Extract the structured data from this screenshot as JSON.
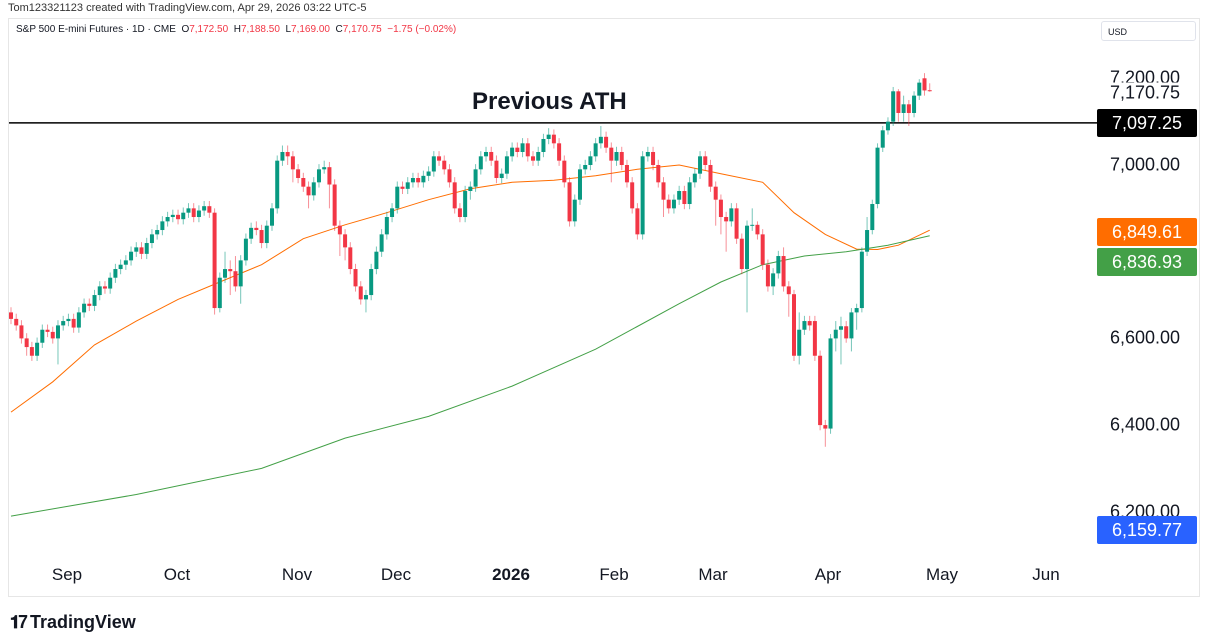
{
  "header": {
    "credit": "Tom123321123 created with TradingView.com, Apr 29, 2026 03:22 UTC-5",
    "symbol": "S&P 500 E-mini Futures · 1D · CME",
    "open_label": "O",
    "open": "7,172.50",
    "high_label": "H",
    "high": "7,188.50",
    "low_label": "L",
    "low": "7,169.00",
    "close_label": "C",
    "close": "7,170.75",
    "change": "−1.75 (−0.02%)",
    "currency": "USD"
  },
  "annotation": "Previous ATH",
  "footer": {
    "logo_icon": "tradingview-logo",
    "brand": "TradingView"
  },
  "colors": {
    "up": "#089981",
    "down": "#f23645",
    "ma_fast": "#ff6d00",
    "ma_slow": "#43a047",
    "blue": "#2962ff",
    "line": "#000000"
  },
  "chart_data": {
    "type": "candlestick",
    "price_axis": {
      "ticks": [
        7200,
        7000,
        6600,
        6400,
        6200
      ],
      "tick_labels": [
        "7,200.00",
        "7,000.00",
        "6,600.00",
        "6,400.00",
        "6,200.00"
      ]
    },
    "time_axis": {
      "tick_labels": [
        "Sep",
        "Oct",
        "Nov",
        "Dec",
        "2026",
        "Feb",
        "Mar",
        "Apr",
        "May",
        "Jun"
      ]
    },
    "horizontal_line": {
      "value": 7097.25,
      "label": "7,097.25"
    },
    "price_badges": [
      {
        "value": 7170.75,
        "label": "7,170.75",
        "style": "plain"
      },
      {
        "value": 7097.25,
        "label": "7,097.25",
        "color": "#000000"
      },
      {
        "value": 6849.61,
        "label": "6,849.61",
        "color": "#ff6d00"
      },
      {
        "value": 6836.93,
        "label": "6,836.93",
        "color": "#43a047"
      },
      {
        "value": 6159.77,
        "label": "6,159.77",
        "color": "#2962ff"
      }
    ],
    "candles": [
      [
        6660,
        6672,
        6633,
        6645
      ],
      [
        6645,
        6657,
        6618,
        6630
      ],
      [
        6630,
        6642,
        6588,
        6600
      ],
      [
        6600,
        6612,
        6560,
        6580
      ],
      [
        6580,
        6592,
        6548,
        6560
      ],
      [
        6560,
        6602,
        6548,
        6590
      ],
      [
        6590,
        6632,
        6578,
        6620
      ],
      [
        6620,
        6632,
        6603,
        6615
      ],
      [
        6615,
        6627,
        6588,
        6600
      ],
      [
        6600,
        6642,
        6540,
        6630
      ],
      [
        6630,
        6652,
        6618,
        6640
      ],
      [
        6640,
        6657,
        6628,
        6645
      ],
      [
        6645,
        6657,
        6613,
        6625
      ],
      [
        6625,
        6672,
        6613,
        6660
      ],
      [
        6660,
        6692,
        6648,
        6680
      ],
      [
        6680,
        6692,
        6663,
        6675
      ],
      [
        6675,
        6712,
        6663,
        6700
      ],
      [
        6700,
        6732,
        6688,
        6720
      ],
      [
        6720,
        6732,
        6703,
        6715
      ],
      [
        6715,
        6752,
        6703,
        6740
      ],
      [
        6740,
        6772,
        6728,
        6760
      ],
      [
        6760,
        6782,
        6748,
        6770
      ],
      [
        6770,
        6792,
        6758,
        6780
      ],
      [
        6780,
        6812,
        6768,
        6800
      ],
      [
        6800,
        6822,
        6788,
        6810
      ],
      [
        6810,
        6822,
        6783,
        6795
      ],
      [
        6795,
        6832,
        6783,
        6820
      ],
      [
        6820,
        6852,
        6808,
        6840
      ],
      [
        6840,
        6862,
        6828,
        6850
      ],
      [
        6850,
        6882,
        6838,
        6870
      ],
      [
        6870,
        6892,
        6858,
        6880
      ],
      [
        6880,
        6897,
        6868,
        6885
      ],
      [
        6885,
        6897,
        6863,
        6875
      ],
      [
        6875,
        6902,
        6863,
        6890
      ],
      [
        6890,
        6912,
        6878,
        6900
      ],
      [
        6900,
        6912,
        6868,
        6880
      ],
      [
        6880,
        6907,
        6868,
        6895
      ],
      [
        6895,
        6917,
        6883,
        6905
      ],
      [
        6905,
        6917,
        6878,
        6890
      ],
      [
        6890,
        6900,
        6655,
        6670
      ],
      [
        6670,
        6752,
        6660,
        6740
      ],
      [
        6740,
        6800,
        6728,
        6760
      ],
      [
        6760,
        6780,
        6700,
        6755
      ],
      [
        6755,
        6790,
        6708,
        6720
      ],
      [
        6720,
        6792,
        6680,
        6780
      ],
      [
        6780,
        6842,
        6768,
        6830
      ],
      [
        6830,
        6867,
        6818,
        6855
      ],
      [
        6855,
        6870,
        6838,
        6850
      ],
      [
        6850,
        6862,
        6808,
        6820
      ],
      [
        6820,
        6872,
        6808,
        6860
      ],
      [
        6860,
        6912,
        6848,
        6900
      ],
      [
        6900,
        7022,
        6888,
        7010
      ],
      [
        7010,
        7045,
        6998,
        7030
      ],
      [
        7030,
        7045,
        7000,
        7020
      ],
      [
        7020,
        7032,
        6960,
        6990
      ],
      [
        6990,
        7002,
        6958,
        6970
      ],
      [
        6970,
        6982,
        6938,
        6950
      ],
      [
        6950,
        6962,
        6900,
        6930
      ],
      [
        6930,
        6972,
        6918,
        6960
      ],
      [
        6960,
        7002,
        6948,
        6990
      ],
      [
        6990,
        7010,
        6980,
        6995
      ],
      [
        6995,
        7007,
        6900,
        6955
      ],
      [
        6955,
        6967,
        6848,
        6860
      ],
      [
        6860,
        6872,
        6790,
        6840
      ],
      [
        6840,
        6852,
        6780,
        6810
      ],
      [
        6810,
        6822,
        6748,
        6760
      ],
      [
        6760,
        6772,
        6708,
        6720
      ],
      [
        6720,
        6732,
        6678,
        6690
      ],
      [
        6690,
        6712,
        6660,
        6700
      ],
      [
        6700,
        6772,
        6688,
        6760
      ],
      [
        6760,
        6812,
        6748,
        6800
      ],
      [
        6800,
        6852,
        6788,
        6840
      ],
      [
        6840,
        6892,
        6828,
        6880
      ],
      [
        6880,
        6912,
        6868,
        6900
      ],
      [
        6900,
        6962,
        6888,
        6950
      ],
      [
        6950,
        6962,
        6933,
        6945
      ],
      [
        6945,
        6972,
        6933,
        6960
      ],
      [
        6960,
        6982,
        6948,
        6970
      ],
      [
        6970,
        6982,
        6948,
        6960
      ],
      [
        6960,
        6987,
        6948,
        6975
      ],
      [
        6975,
        6997,
        6963,
        6985
      ],
      [
        6985,
        7032,
        6973,
        7020
      ],
      [
        7020,
        7032,
        6998,
        7010
      ],
      [
        7010,
        7022,
        6978,
        6990
      ],
      [
        6990,
        7002,
        6948,
        6960
      ],
      [
        6960,
        6972,
        6888,
        6900
      ],
      [
        6900,
        6912,
        6868,
        6880
      ],
      [
        6880,
        6952,
        6868,
        6940
      ],
      [
        6940,
        6962,
        6920,
        6950
      ],
      [
        6950,
        7002,
        6938,
        6990
      ],
      [
        6990,
        7032,
        6978,
        7020
      ],
      [
        7020,
        7042,
        7008,
        7030
      ],
      [
        7030,
        7042,
        6998,
        7010
      ],
      [
        7010,
        7022,
        6958,
        6970
      ],
      [
        6970,
        6992,
        6958,
        6980
      ],
      [
        6980,
        7032,
        6968,
        7020
      ],
      [
        7020,
        7052,
        7008,
        7040
      ],
      [
        7040,
        7052,
        7018,
        7030
      ],
      [
        7030,
        7062,
        7018,
        7050
      ],
      [
        7050,
        7062,
        7008,
        7020
      ],
      [
        7020,
        7032,
        6998,
        7010
      ],
      [
        7010,
        7042,
        6998,
        7030
      ],
      [
        7030,
        7072,
        7018,
        7060
      ],
      [
        7060,
        7085,
        7048,
        7070
      ],
      [
        7070,
        7082,
        7038,
        7050
      ],
      [
        7050,
        7062,
        6998,
        7010
      ],
      [
        7010,
        7022,
        6948,
        6960
      ],
      [
        6960,
        6972,
        6858,
        6870
      ],
      [
        6870,
        6932,
        6858,
        6920
      ],
      [
        6920,
        7002,
        6908,
        6990
      ],
      [
        6990,
        7012,
        6978,
        7000
      ],
      [
        7000,
        7032,
        6988,
        7020
      ],
      [
        7020,
        7062,
        7008,
        7050
      ],
      [
        7050,
        7090,
        7038,
        7065
      ],
      [
        7065,
        7077,
        7028,
        7040
      ],
      [
        7040,
        7052,
        6960,
        7010
      ],
      [
        7010,
        7042,
        6998,
        7030
      ],
      [
        7030,
        7042,
        6988,
        7000
      ],
      [
        7000,
        7012,
        6948,
        6960
      ],
      [
        6960,
        6972,
        6888,
        6900
      ],
      [
        6900,
        6912,
        6828,
        6840
      ],
      [
        6840,
        7032,
        6828,
        7020
      ],
      [
        7020,
        7042,
        7008,
        7030
      ],
      [
        7030,
        7042,
        6988,
        7000
      ],
      [
        7000,
        7012,
        6948,
        6960
      ],
      [
        6960,
        6972,
        6880,
        6920
      ],
      [
        6920,
        6932,
        6888,
        6900
      ],
      [
        6900,
        6932,
        6888,
        6920
      ],
      [
        6920,
        6952,
        6908,
        6940
      ],
      [
        6940,
        6952,
        6898,
        6910
      ],
      [
        6910,
        6972,
        6898,
        6960
      ],
      [
        6960,
        6992,
        6948,
        6980
      ],
      [
        6980,
        7032,
        6968,
        7020
      ],
      [
        7020,
        7032,
        6988,
        7000
      ],
      [
        7000,
        7012,
        6938,
        6950
      ],
      [
        6950,
        6962,
        6860,
        6920
      ],
      [
        6920,
        6932,
        6840,
        6880
      ],
      [
        6880,
        6892,
        6800,
        6870
      ],
      [
        6870,
        6912,
        6858,
        6900
      ],
      [
        6900,
        6912,
        6818,
        6830
      ],
      [
        6830,
        6842,
        6748,
        6760
      ],
      [
        6760,
        6872,
        6660,
        6860
      ],
      [
        6860,
        6900,
        6848,
        6862
      ],
      [
        6862,
        6870,
        6828,
        6840
      ],
      [
        6840,
        6852,
        6758,
        6770
      ],
      [
        6770,
        6782,
        6708,
        6720
      ],
      [
        6720,
        6762,
        6700,
        6750
      ],
      [
        6750,
        6802,
        6738,
        6790
      ],
      [
        6790,
        6810,
        6708,
        6720
      ],
      [
        6720,
        6732,
        6650,
        6702
      ],
      [
        6702,
        6712,
        6548,
        6560
      ],
      [
        6560,
        6660,
        6540,
        6620
      ],
      [
        6620,
        6652,
        6608,
        6640
      ],
      [
        6640,
        6652,
        6618,
        6630
      ],
      [
        6640,
        6652,
        6548,
        6560
      ],
      [
        6560,
        6572,
        6388,
        6400
      ],
      [
        6400,
        6412,
        6350,
        6392
      ],
      [
        6392,
        6610,
        6380,
        6600
      ],
      [
        6600,
        6640,
        6570,
        6620
      ],
      [
        6620,
        6650,
        6540,
        6628
      ],
      [
        6628,
        6640,
        6590,
        6600
      ],
      [
        6600,
        6670,
        6570,
        6660
      ],
      [
        6660,
        6680,
        6620,
        6670
      ],
      [
        6670,
        6810,
        6660,
        6800
      ],
      [
        6800,
        6880,
        6790,
        6850
      ],
      [
        6850,
        6920,
        6840,
        6910
      ],
      [
        6910,
        7050,
        6900,
        7040
      ],
      [
        7040,
        7090,
        7030,
        7080
      ],
      [
        7080,
        7110,
        7070,
        7100
      ],
      [
        7100,
        7180,
        7090,
        7170
      ],
      [
        7170,
        7175,
        7100,
        7120
      ],
      [
        7120,
        7160,
        7100,
        7140
      ],
      [
        7140,
        7150,
        7090,
        7120
      ],
      [
        7120,
        7170,
        7110,
        7160
      ],
      [
        7160,
        7198,
        7150,
        7190
      ],
      [
        7200,
        7212,
        7160,
        7172
      ],
      [
        7172.5,
        7188.5,
        7169,
        7170.75
      ]
    ],
    "moving_averages": [
      {
        "color": "#ff6d00",
        "points": [
          [
            0,
            6430
          ],
          [
            8,
            6500
          ],
          [
            16,
            6585
          ],
          [
            24,
            6640
          ],
          [
            32,
            6690
          ],
          [
            40,
            6730
          ],
          [
            48,
            6770
          ],
          [
            56,
            6830
          ],
          [
            64,
            6862
          ],
          [
            72,
            6890
          ],
          [
            80,
            6920
          ],
          [
            88,
            6945
          ],
          [
            96,
            6960
          ],
          [
            104,
            6965
          ],
          [
            112,
            6975
          ],
          [
            120,
            6990
          ],
          [
            128,
            7000
          ],
          [
            136,
            6980
          ],
          [
            144,
            6960
          ],
          [
            150,
            6890
          ],
          [
            156,
            6840
          ],
          [
            162,
            6806
          ],
          [
            166,
            6805
          ],
          [
            170,
            6815
          ],
          [
            176,
            6849.61
          ]
        ]
      },
      {
        "color": "#43a047",
        "points": [
          [
            0,
            6190
          ],
          [
            24,
            6240
          ],
          [
            48,
            6300
          ],
          [
            64,
            6370
          ],
          [
            80,
            6420
          ],
          [
            96,
            6490
          ],
          [
            112,
            6575
          ],
          [
            128,
            6680
          ],
          [
            136,
            6730
          ],
          [
            144,
            6770
          ],
          [
            152,
            6790
          ],
          [
            160,
            6800
          ],
          [
            168,
            6815
          ],
          [
            176,
            6836.93
          ]
        ]
      }
    ]
  }
}
